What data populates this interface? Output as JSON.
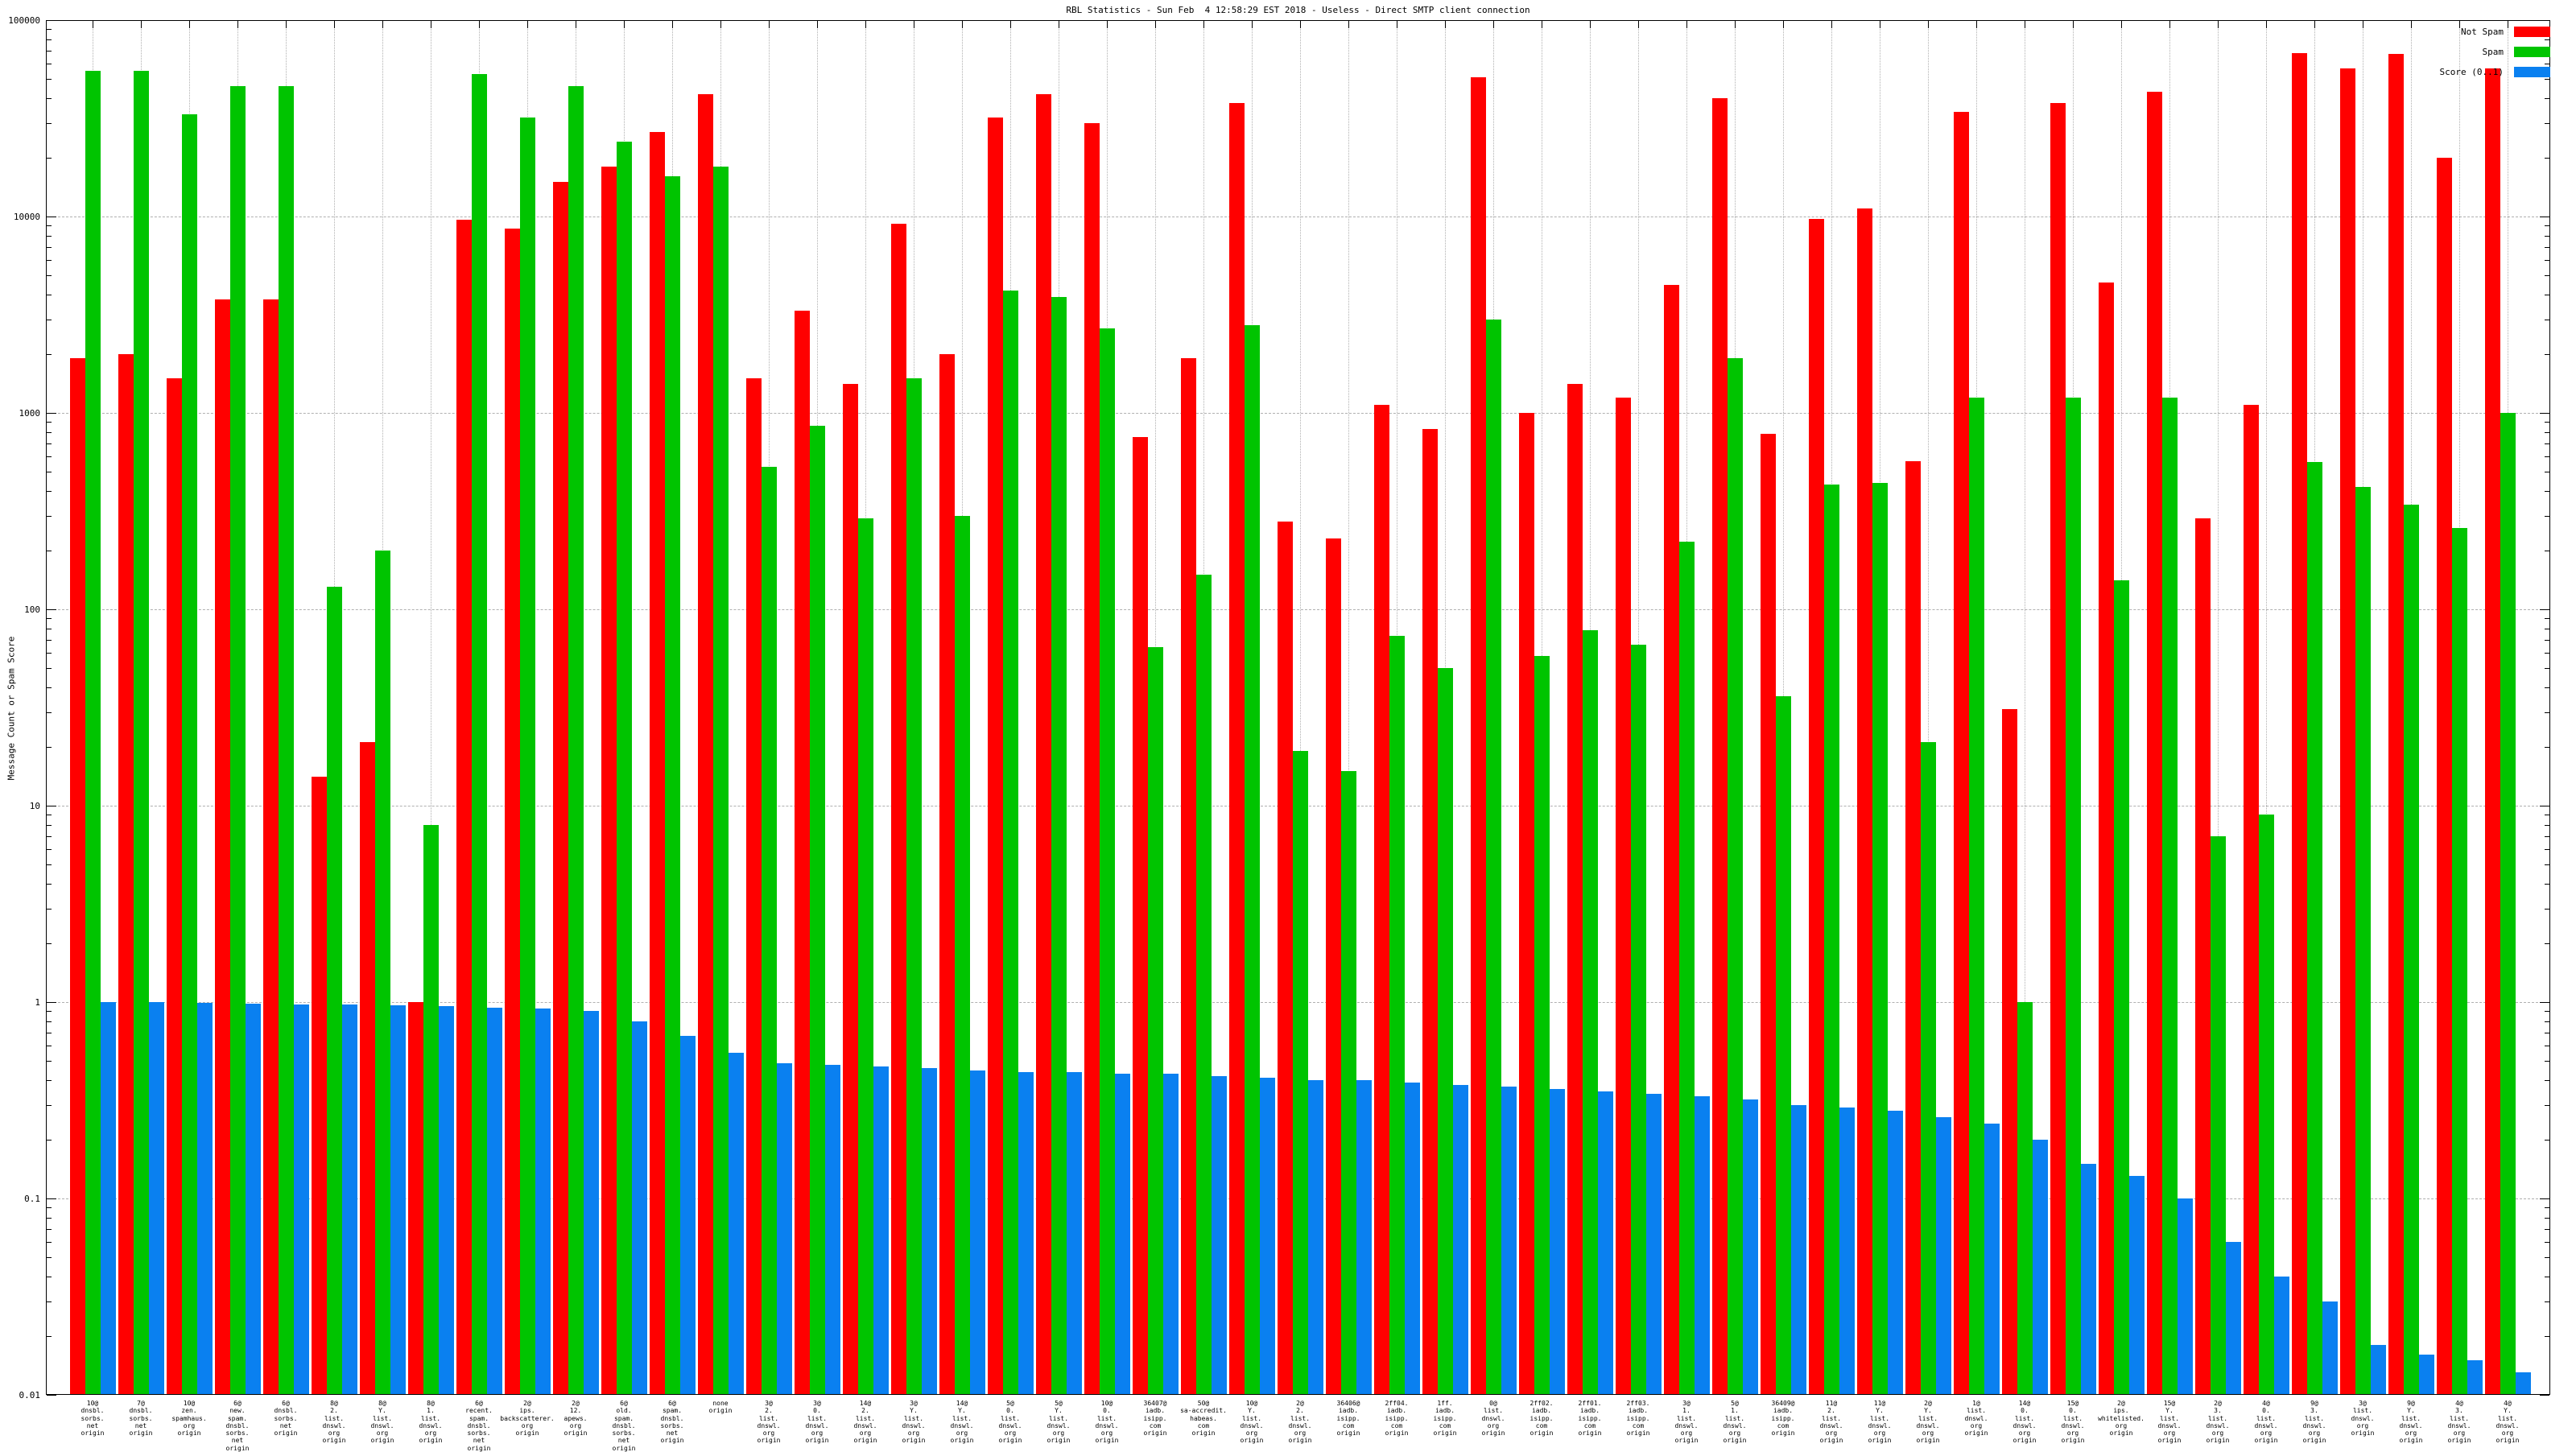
{
  "chart_data": {
    "type": "bar",
    "title": "RBL Statistics - Sun Feb  4 12:58:29 EST 2018 - Useless - Direct SMTP client connection",
    "xlabel": "",
    "ylabel": "Message Count or Spam Score",
    "yscale": "log",
    "ylim": [
      0.01,
      100000
    ],
    "y_ticks": [
      "100000",
      "10000",
      "1000",
      "100",
      "10",
      "1",
      "0.1",
      "0.01"
    ],
    "grid": true,
    "legend_position": "top-right",
    "categories": [
      [
        "10@",
        "dnsbl.",
        "sorbs.",
        "net",
        "origin"
      ],
      [
        "7@",
        "dnsbl.",
        "sorbs.",
        "net",
        "origin"
      ],
      [
        "10@",
        "zen.",
        "spamhaus.",
        "org",
        "origin"
      ],
      [
        "6@",
        "new.",
        "spam.",
        "dnsbl.",
        "sorbs.",
        "net",
        "origin"
      ],
      [
        "6@",
        "dnsbl.",
        "sorbs.",
        "net",
        "origin"
      ],
      [
        "8@",
        "2.",
        "list.",
        "dnswl.",
        "org",
        "origin"
      ],
      [
        "8@",
        "Y.",
        "list.",
        "dnswl.",
        "org",
        "origin"
      ],
      [
        "8@",
        "1.",
        "list.",
        "dnswl.",
        "org",
        "origin"
      ],
      [
        "6@",
        "recent.",
        "spam.",
        "dnsbl.",
        "sorbs.",
        "net",
        "origin"
      ],
      [
        "2@",
        "ips.",
        "backscatterer.",
        "org",
        "origin"
      ],
      [
        "2@",
        "12.",
        "apews.",
        "org",
        "origin"
      ],
      [
        "6@",
        "old.",
        "spam.",
        "dnsbl.",
        "sorbs.",
        "net",
        "origin"
      ],
      [
        "6@",
        "spam.",
        "dnsbl.",
        "sorbs.",
        "net",
        "origin"
      ],
      [
        "none",
        "origin"
      ],
      [
        "3@",
        "2.",
        "list.",
        "dnswl.",
        "org",
        "origin"
      ],
      [
        "3@",
        "0.",
        "list.",
        "dnswl.",
        "org",
        "origin"
      ],
      [
        "14@",
        "2.",
        "list.",
        "dnswl.",
        "org",
        "origin"
      ],
      [
        "3@",
        "Y.",
        "list.",
        "dnswl.",
        "org",
        "origin"
      ],
      [
        "14@",
        "Y.",
        "list.",
        "dnswl.",
        "org",
        "origin"
      ],
      [
        "5@",
        "0.",
        "list.",
        "dnswl.",
        "org",
        "origin"
      ],
      [
        "5@",
        "Y.",
        "list.",
        "dnswl.",
        "org",
        "origin"
      ],
      [
        "10@",
        "0.",
        "list.",
        "dnswl.",
        "org",
        "origin"
      ],
      [
        "36407@",
        "iadb.",
        "isipp.",
        "com",
        "origin"
      ],
      [
        "50@",
        "sa-accredit.",
        "habeas.",
        "com",
        "origin"
      ],
      [
        "10@",
        "Y.",
        "list.",
        "dnswl.",
        "org",
        "origin"
      ],
      [
        "2@",
        "2.",
        "list.",
        "dnswl.",
        "org",
        "origin"
      ],
      [
        "36406@",
        "iadb.",
        "isipp.",
        "com",
        "origin"
      ],
      [
        "2ff04.",
        "iadb.",
        "isipp.",
        "com",
        "origin"
      ],
      [
        "1ff.",
        "iadb.",
        "isipp.",
        "com",
        "origin"
      ],
      [
        "0@",
        "list.",
        "dnswl.",
        "org",
        "origin"
      ],
      [
        "2ff02.",
        "iadb.",
        "isipp.",
        "com",
        "origin"
      ],
      [
        "2ff01.",
        "iadb.",
        "isipp.",
        "com",
        "origin"
      ],
      [
        "2ff03.",
        "iadb.",
        "isipp.",
        "com",
        "origin"
      ],
      [
        "3@",
        "1.",
        "list.",
        "dnswl.",
        "org",
        "origin"
      ],
      [
        "5@",
        "1.",
        "list.",
        "dnswl.",
        "org",
        "origin"
      ],
      [
        "36409@",
        "iadb.",
        "isipp.",
        "com",
        "origin"
      ],
      [
        "11@",
        "2.",
        "list.",
        "dnswl.",
        "org",
        "origin"
      ],
      [
        "11@",
        "Y.",
        "list.",
        "dnswl.",
        "org",
        "origin"
      ],
      [
        "2@",
        "Y.",
        "list.",
        "dnswl.",
        "org",
        "origin"
      ],
      [
        "1@",
        "list.",
        "dnswl.",
        "org",
        "origin"
      ],
      [
        "14@",
        "0.",
        "list.",
        "dnswl.",
        "org",
        "origin"
      ],
      [
        "15@",
        "0.",
        "list.",
        "dnswl.",
        "org",
        "origin"
      ],
      [
        "2@",
        "ips.",
        "whitelisted.",
        "org",
        "origin"
      ],
      [
        "15@",
        "Y.",
        "list.",
        "dnswl.",
        "org",
        "origin"
      ],
      [
        "2@",
        "3.",
        "list.",
        "dnswl.",
        "org",
        "origin"
      ],
      [
        "4@",
        "0.",
        "list.",
        "dnswl.",
        "org",
        "origin"
      ],
      [
        "9@",
        "3.",
        "list.",
        "dnswl.",
        "org",
        "origin"
      ],
      [
        "3@",
        "list.",
        "dnswl.",
        "org",
        "origin"
      ],
      [
        "9@",
        "Y.",
        "list.",
        "dnswl.",
        "org",
        "origin"
      ],
      [
        "4@",
        "3.",
        "list.",
        "dnswl.",
        "org",
        "origin"
      ],
      [
        "4@",
        "Y.",
        "list.",
        "dnswl.",
        "org",
        "origin"
      ]
    ],
    "series": [
      {
        "name": "Not Spam",
        "color": "#ff0000",
        "values": [
          1900,
          2000,
          1500,
          3800,
          3800,
          14,
          21,
          1,
          9600,
          8700,
          15000,
          18000,
          27000,
          42000,
          1500,
          3300,
          1400,
          9200,
          2000,
          32000,
          42000,
          30000,
          750,
          1900,
          38000,
          280,
          230,
          1100,
          830,
          51000,
          1000,
          1400,
          1200,
          4500,
          40000,
          780,
          9700,
          11000,
          570,
          34000,
          31,
          38000,
          4600,
          43000,
          290,
          1100,
          68000,
          57000,
          67000,
          20000,
          57000
        ]
      },
      {
        "name": "Spam",
        "color": "#00c400",
        "values": [
          55000,
          55000,
          33000,
          46000,
          46000,
          130,
          200,
          8,
          53000,
          32000,
          46000,
          24000,
          16000,
          18000,
          530,
          860,
          290,
          1500,
          300,
          4200,
          3900,
          2700,
          64,
          150,
          2800,
          19,
          15,
          73,
          50,
          3000,
          58,
          78,
          66,
          220,
          1900,
          36,
          430,
          440,
          21,
          1200,
          1,
          1200,
          140,
          1200,
          7,
          9,
          560,
          420,
          340,
          260,
          1000
        ]
      },
      {
        "name": "Score (0..1)",
        "color": "#0a80f0",
        "values": [
          1.0,
          1.0,
          0.99,
          0.98,
          0.97,
          0.97,
          0.96,
          0.95,
          0.94,
          0.93,
          0.9,
          0.8,
          0.67,
          0.55,
          0.49,
          0.48,
          0.47,
          0.46,
          0.45,
          0.44,
          0.44,
          0.43,
          0.43,
          0.42,
          0.41,
          0.4,
          0.4,
          0.39,
          0.38,
          0.37,
          0.36,
          0.35,
          0.34,
          0.33,
          0.32,
          0.3,
          0.29,
          0.28,
          0.26,
          0.24,
          0.2,
          0.15,
          0.13,
          0.1,
          0.06,
          0.04,
          0.03,
          0.018,
          0.016,
          0.015,
          0.013
        ]
      }
    ]
  }
}
